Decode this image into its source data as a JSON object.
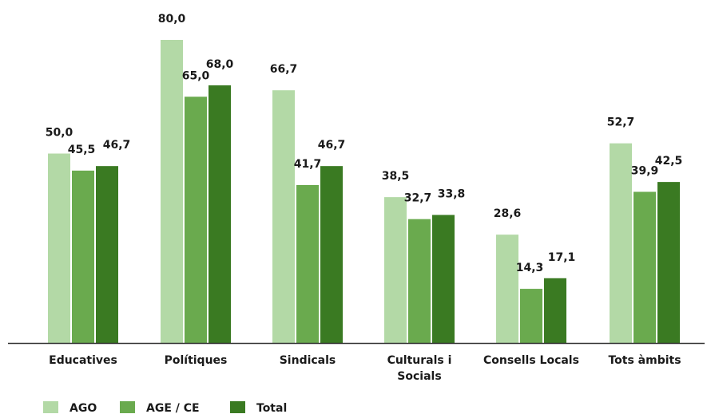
{
  "chart_data": {
    "type": "bar",
    "title": "",
    "xlabel": "",
    "ylabel": "",
    "ylim": [
      0,
      85
    ],
    "grid": false,
    "legend_position": "bottom-left",
    "categories": [
      [
        "Educatives"
      ],
      [
        "Polítiques"
      ],
      [
        "Sindicals"
      ],
      [
        "Culturals i",
        "Socials"
      ],
      [
        "Consells Locals"
      ],
      [
        "Tots àmbits"
      ]
    ],
    "series": [
      {
        "name": "AGO",
        "color": "#b3d9a6",
        "values": [
          50.0,
          80.0,
          66.7,
          38.5,
          28.6,
          52.7
        ],
        "labels": [
          "50,0",
          "80,0",
          "66,7",
          "38,5",
          "28,6",
          "52,7"
        ]
      },
      {
        "name": "AGE / CE",
        "color": "#6aaa4e",
        "values": [
          45.5,
          65.0,
          41.7,
          32.7,
          14.3,
          39.9
        ],
        "labels": [
          "45,5",
          "65,0",
          "41,7",
          "32,7",
          "14,3",
          "39,9"
        ]
      },
      {
        "name": "Total",
        "color": "#3a7a22",
        "values": [
          46.7,
          68.0,
          46.7,
          33.8,
          17.1,
          42.5
        ],
        "labels": [
          "46,7",
          "68,0",
          "46,7",
          "33,8",
          "17,1",
          "42,5"
        ]
      }
    ]
  }
}
